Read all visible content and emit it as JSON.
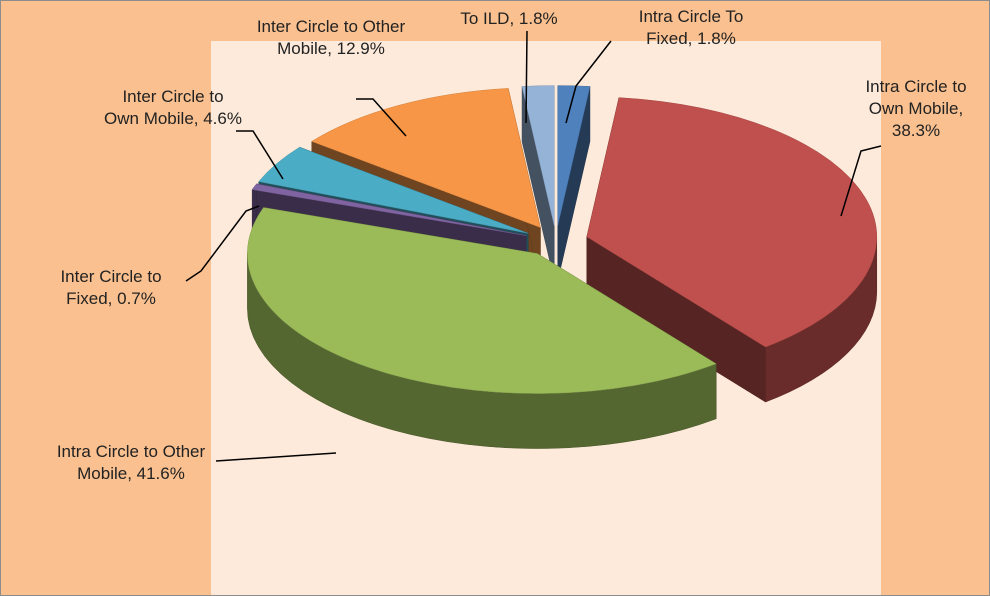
{
  "chart_data": {
    "type": "pie",
    "values": [
      1.8,
      38.3,
      41.6,
      0.7,
      4.6,
      12.9,
      1.8
    ],
    "value_labels": [
      "Intra Circle To Fixed, 1.8%",
      "Intra Circle to Own Mobile, 38.3%",
      "Intra Circle to Other Mobile, 41.6%",
      "Inter Circle to Fixed, 0.7%",
      "Inter Circle to Own Mobile, 4.6%",
      "Inter Circle to Other Mobile, 12.9%",
      "To ILD, 1.8%"
    ],
    "colors": [
      "#4f81bd",
      "#c0504d",
      "#9bbb59",
      "#8064a2",
      "#4bacc6",
      "#f79646",
      "#95b3d7"
    ],
    "explode": true,
    "three_d": true
  }
}
